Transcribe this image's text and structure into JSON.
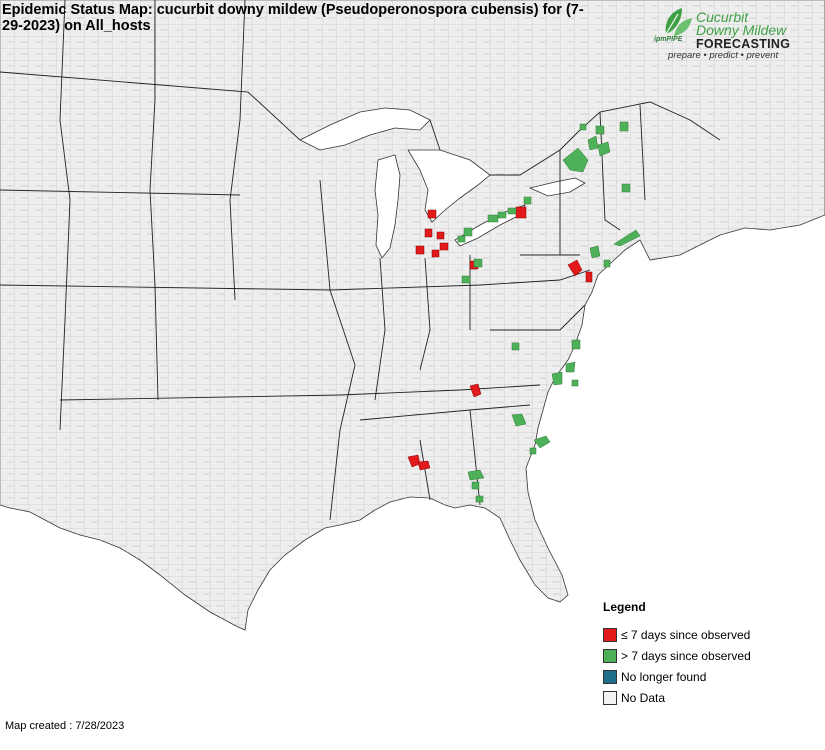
{
  "title": "Epidemic Status Map: cucurbit downy mildew (Pseudoperonospora cubensis) for (7-29-2023) on All_hosts",
  "logo": {
    "line1": "Cucurbit",
    "line2": "Downy Mildew",
    "forecasting": "FORECASTING",
    "ipm": "ipmPIPE",
    "tagline": "prepare • predict • prevent"
  },
  "legend": {
    "title": "Legend",
    "items": [
      {
        "label": "≤ 7 days since observed",
        "color": "#e31a1c"
      },
      {
        "label": "> 7 days since observed",
        "color": "#4fb05a"
      },
      {
        "label": "No longer found",
        "color": "#1f6e8c"
      },
      {
        "label": "No Data",
        "color": "#f2f2f2"
      }
    ]
  },
  "map_created": "Map created : 7/28/2023",
  "colors": {
    "land": "#eeeeee",
    "water": "#ffffff",
    "state_border": "#222222",
    "county_border": "#a9a9a9"
  }
}
